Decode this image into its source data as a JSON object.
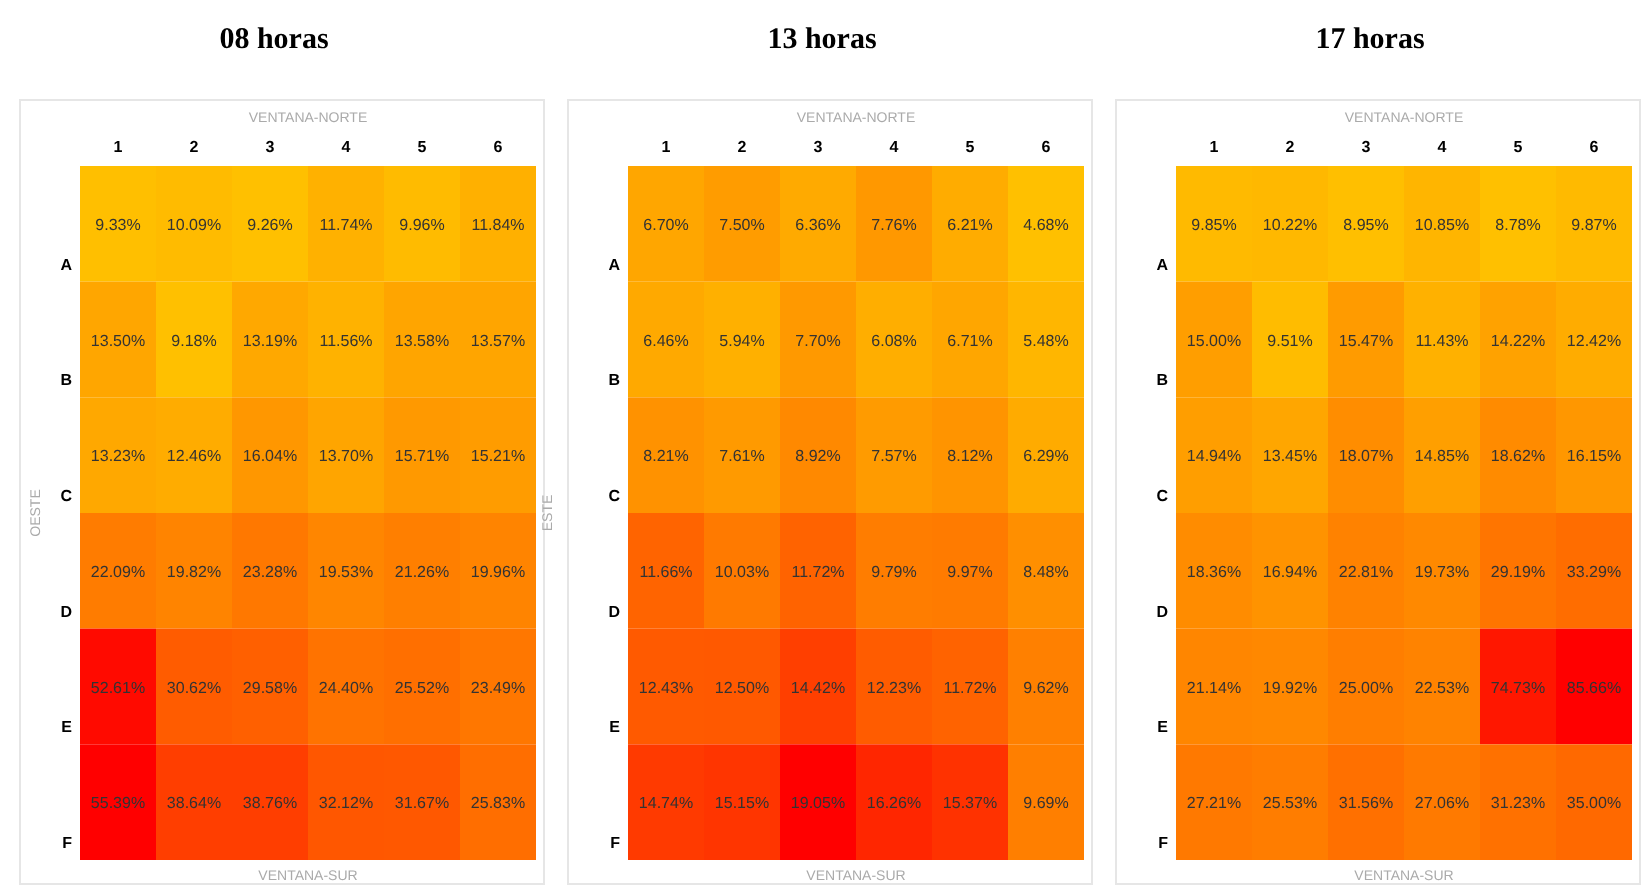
{
  "chart_data": [
    {
      "type": "heatmap",
      "title": "08 horas",
      "x2label": "VENTANA-NORTE",
      "xlabel": "VENTANA-SUR",
      "ylabel": "OESTE",
      "y2label": "ESTE",
      "categories": [
        "1",
        "2",
        "3",
        "4",
        "5",
        "6"
      ],
      "y_categories": [
        "A",
        "B",
        "C",
        "D",
        "E",
        "F"
      ],
      "cells": [
        [
          9.33,
          10.09,
          9.26,
          11.74,
          9.96,
          11.84
        ],
        [
          13.5,
          9.18,
          13.19,
          11.56,
          13.58,
          13.57
        ],
        [
          13.23,
          12.46,
          16.04,
          13.7,
          15.71,
          15.21
        ],
        [
          22.09,
          19.82,
          23.28,
          19.53,
          21.26,
          19.96
        ],
        [
          52.61,
          30.62,
          29.58,
          24.4,
          25.52,
          23.49
        ],
        [
          55.39,
          38.64,
          38.76,
          32.12,
          31.67,
          25.83
        ]
      ],
      "cell_labels": [
        [
          "9.33%",
          "10.09%",
          "9.26%",
          "11.74%",
          "9.96%",
          "11.84%"
        ],
        [
          "13.50%",
          "9.18%",
          "13.19%",
          "11.56%",
          "13.58%",
          "13.57%"
        ],
        [
          "13.23%",
          "12.46%",
          "16.04%",
          "13.70%",
          "15.71%",
          "15.21%"
        ],
        [
          "22.09%",
          "19.82%",
          "23.28%",
          "19.53%",
          "21.26%",
          "19.96%"
        ],
        [
          "52.61%",
          "30.62%",
          "29.58%",
          "24.40%",
          "25.52%",
          "23.49%"
        ],
        [
          "55.39%",
          "38.64%",
          "38.76%",
          "32.12%",
          "31.67%",
          "25.83%"
        ]
      ]
    },
    {
      "type": "heatmap",
      "title": "13 horas",
      "x2label": "VENTANA-NORTE",
      "xlabel": "VENTANA-SUR",
      "categories": [
        "1",
        "2",
        "3",
        "4",
        "5",
        "6"
      ],
      "y_categories": [
        "A",
        "B",
        "C",
        "D",
        "E",
        "F"
      ],
      "cells": [
        [
          6.7,
          7.5,
          6.36,
          7.76,
          6.21,
          4.68
        ],
        [
          6.46,
          5.94,
          7.7,
          6.08,
          6.71,
          5.48
        ],
        [
          8.21,
          7.61,
          8.92,
          7.57,
          8.12,
          6.29
        ],
        [
          11.66,
          10.03,
          11.72,
          9.79,
          9.97,
          8.48
        ],
        [
          12.43,
          12.5,
          14.42,
          12.23,
          11.72,
          9.62
        ],
        [
          14.74,
          15.15,
          19.05,
          16.26,
          15.37,
          9.69
        ]
      ],
      "cell_labels": [
        [
          "6.70%",
          "7.50%",
          "6.36%",
          "7.76%",
          "6.21%",
          "4.68%"
        ],
        [
          "6.46%",
          "5.94%",
          "7.70%",
          "6.08%",
          "6.71%",
          "5.48%"
        ],
        [
          "8.21%",
          "7.61%",
          "8.92%",
          "7.57%",
          "8.12%",
          "6.29%"
        ],
        [
          "11.66%",
          "10.03%",
          "11.72%",
          "9.79%",
          "9.97%",
          "8.48%"
        ],
        [
          "12.43%",
          "12.50%",
          "14.42%",
          "12.23%",
          "11.72%",
          "9.62%"
        ],
        [
          "14.74%",
          "15.15%",
          "19.05%",
          "16.26%",
          "15.37%",
          "9.69%"
        ]
      ]
    },
    {
      "type": "heatmap",
      "title": "17 horas",
      "x2label": "VENTANA-NORTE",
      "xlabel": "VENTANA-SUR",
      "categories": [
        "1",
        "2",
        "3",
        "4",
        "5",
        "6"
      ],
      "y_categories": [
        "A",
        "B",
        "C",
        "D",
        "E",
        "F"
      ],
      "cells": [
        [
          9.85,
          10.22,
          8.95,
          10.85,
          8.78,
          9.87
        ],
        [
          15.0,
          9.51,
          15.47,
          11.43,
          14.22,
          12.42
        ],
        [
          14.94,
          13.45,
          18.07,
          14.85,
          18.62,
          16.15
        ],
        [
          18.36,
          16.94,
          22.81,
          19.73,
          29.19,
          33.29
        ],
        [
          21.14,
          19.92,
          25.0,
          22.53,
          74.73,
          85.66
        ],
        [
          27.21,
          25.53,
          31.56,
          27.06,
          31.23,
          35.0
        ]
      ],
      "cell_labels": [
        [
          "9.85%",
          "10.22%",
          "8.95%",
          "10.85%",
          "8.78%",
          "9.87%"
        ],
        [
          "15.00%",
          "9.51%",
          "15.47%",
          "11.43%",
          "14.22%",
          "12.42%"
        ],
        [
          "14.94%",
          "13.45%",
          "18.07%",
          "14.85%",
          "18.62%",
          "16.15%"
        ],
        [
          "18.36%",
          "16.94%",
          "22.81%",
          "19.73%",
          "29.19%",
          "33.29%"
        ],
        [
          "21.14%",
          "19.92%",
          "25.00%",
          "22.53%",
          "74.73%",
          "85.66%"
        ],
        [
          "27.21%",
          "25.53%",
          "31.56%",
          "27.06%",
          "31.23%",
          "35.00%"
        ]
      ]
    }
  ]
}
